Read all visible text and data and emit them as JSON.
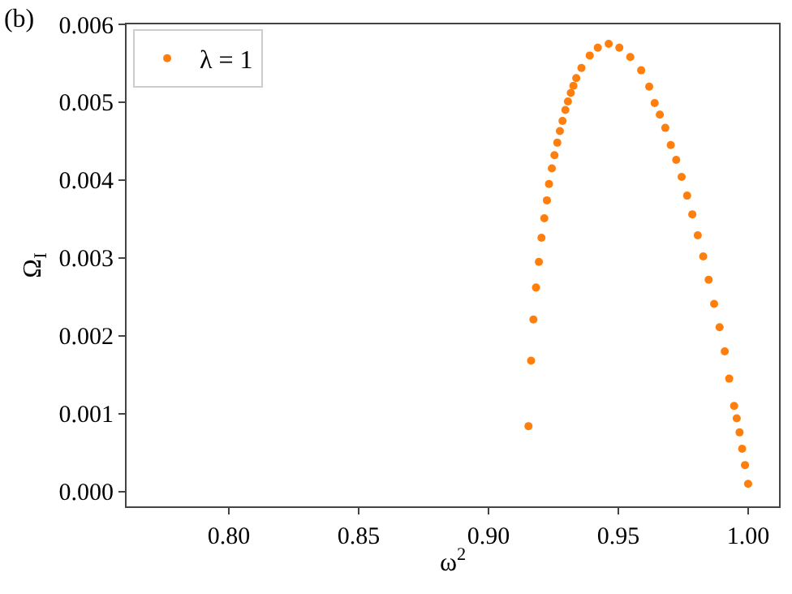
{
  "chart_data": {
    "type": "scatter",
    "title": "(b)",
    "xlabel": "ω$^{2}$",
    "ylabel": "Ω$_{I}$",
    "xlim": [
      0.7606,
      1.0119
    ],
    "ylim": [
      -0.00019,
      0.006
    ],
    "xticks": [
      {
        "value": 0.8,
        "label": "0.80"
      },
      {
        "value": 0.85,
        "label": "0.85"
      },
      {
        "value": 0.9,
        "label": "0.90"
      },
      {
        "value": 0.95,
        "label": "0.95"
      },
      {
        "value": 1.0,
        "label": "1.00"
      }
    ],
    "yticks": [
      {
        "value": 0,
        "label": "0.000"
      },
      {
        "value": 0.001,
        "label": "0.001"
      },
      {
        "value": 0.002,
        "label": "0.002"
      },
      {
        "value": 0.003,
        "label": "0.003"
      },
      {
        "value": 0.004,
        "label": "0.004"
      },
      {
        "value": 0.005,
        "label": "0.005"
      },
      {
        "value": 0.006,
        "label": "0.006"
      }
    ],
    "legend": "top left",
    "marker": "circle",
    "series": [
      {
        "name": "λ = 1",
        "color": "#ff7f0e",
        "x": [
          0.9154,
          0.9164,
          0.9173,
          0.9183,
          0.9194,
          0.9204,
          0.9215,
          0.9225,
          0.9233,
          0.9244,
          0.9254,
          0.9265,
          0.9275,
          0.9285,
          0.9296,
          0.9306,
          0.9317,
          0.9327,
          0.9338,
          0.9358,
          0.939,
          0.9421,
          0.9463,
          0.9504,
          0.9546,
          0.9588,
          0.9619,
          0.964,
          0.966,
          0.9681,
          0.9702,
          0.9723,
          0.9744,
          0.9765,
          0.9785,
          0.9806,
          0.9827,
          0.9848,
          0.9869,
          0.989,
          0.991,
          0.9927,
          0.9946,
          0.9956,
          0.9967,
          0.9977,
          0.9988,
          1.0
        ],
        "values": [
          0.00084,
          0.00168,
          0.00221,
          0.00262,
          0.00295,
          0.00326,
          0.00351,
          0.00374,
          0.00395,
          0.00415,
          0.00432,
          0.00448,
          0.00463,
          0.00476,
          0.0049,
          0.00501,
          0.00512,
          0.00521,
          0.00531,
          0.00544,
          0.0056,
          0.0057,
          0.00575,
          0.0057,
          0.00558,
          0.00541,
          0.0052,
          0.00499,
          0.00484,
          0.00467,
          0.00445,
          0.00426,
          0.00404,
          0.0038,
          0.00356,
          0.00329,
          0.00302,
          0.00272,
          0.00241,
          0.00211,
          0.0018,
          0.00145,
          0.0011,
          0.00094,
          0.00076,
          0.00055,
          0.00034,
          0.0001
        ]
      }
    ]
  }
}
